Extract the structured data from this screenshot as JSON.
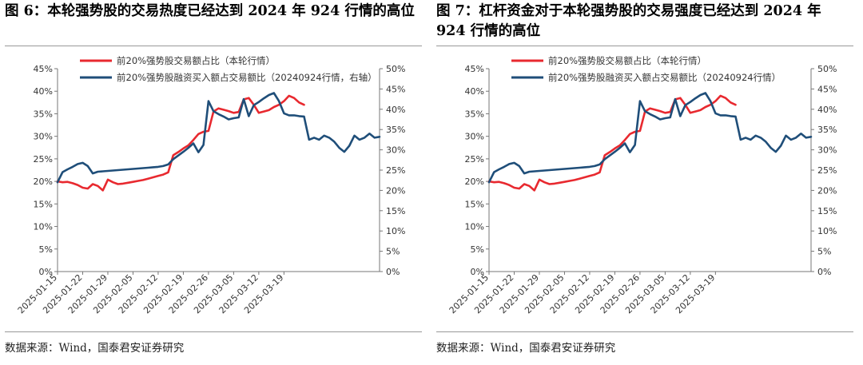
{
  "figures": [
    {
      "title": "图 6：本轮强势股的交易热度已经达到 2024 年 924 行情的高位",
      "source": "数据来源：Wind，国泰君安证券研究"
    },
    {
      "title": "图 7：杠杆资金对于本轮强势股的交易强度已经达到 2024 年 924 行情的高位",
      "source": "数据来源：Wind，国泰君安证券研究"
    }
  ],
  "chart_data": [
    {
      "type": "line",
      "title": "",
      "x_tick_labels": [
        "2025-01-15",
        "2025-01-22",
        "2025-01-29",
        "2025-02-05",
        "2025-02-12",
        "2025-02-19",
        "2025-02-26",
        "2025-03-05",
        "2025-03-12",
        "2025-03-19"
      ],
      "y_left": {
        "range": [
          0,
          45
        ],
        "ticks": [
          0,
          5,
          10,
          15,
          20,
          25,
          30,
          35,
          40,
          45
        ],
        "tick_labels": [
          "0%",
          "5%",
          "10%",
          "15%",
          "20%",
          "25%",
          "30%",
          "35%",
          "40%",
          "45%"
        ]
      },
      "y_right": {
        "range": [
          0,
          50
        ],
        "ticks": [
          0,
          5,
          10,
          15,
          20,
          25,
          30,
          35,
          40,
          45,
          50
        ],
        "tick_labels": [
          "0%",
          "5%",
          "10%",
          "15%",
          "20%",
          "25%",
          "30%",
          "35%",
          "40%",
          "45%",
          "50%"
        ]
      },
      "x_range": [
        0,
        64
      ],
      "series": [
        {
          "name": "前20%强势股交易额占比（本轮行情）",
          "color": "#e8292f",
          "axis": "left",
          "x": [
            0,
            1,
            2,
            3,
            4,
            5,
            6,
            7,
            8,
            9,
            10,
            11,
            12,
            13,
            14,
            15,
            16,
            17,
            18,
            19,
            20,
            21,
            22,
            23,
            24,
            25,
            26,
            27,
            28,
            29,
            30,
            31,
            32,
            33,
            34,
            35,
            36,
            37,
            38,
            39,
            40,
            41,
            42,
            43,
            44,
            45,
            46,
            47,
            48,
            49,
            50
          ],
          "values": [
            20.0,
            19.8,
            19.9,
            19.6,
            19.2,
            18.6,
            18.4,
            19.4,
            19.0,
            18.0,
            20.4,
            19.8,
            19.4,
            19.5,
            19.7,
            19.9,
            20.1,
            20.3,
            20.6,
            20.9,
            21.2,
            21.5,
            22.0,
            25.8,
            26.5,
            27.3,
            28.0,
            29.2,
            30.5,
            31.0,
            31.2,
            35.5,
            36.2,
            35.9,
            35.6,
            35.2,
            35.4,
            38.2,
            38.5,
            37.0,
            35.2,
            35.5,
            35.8,
            36.5,
            37.0,
            37.8,
            39.0,
            38.5,
            37.5,
            37.0,
            null
          ]
        },
        {
          "name": "前20%强势股融资买入额占交易额比（20240924行情，右轴）",
          "color": "#1f4e79",
          "axis": "right",
          "x": [
            0,
            1,
            2,
            3,
            4,
            5,
            6,
            7,
            8,
            9,
            10,
            11,
            12,
            13,
            14,
            15,
            16,
            17,
            18,
            19,
            20,
            21,
            22,
            23,
            24,
            25,
            26,
            27,
            28,
            29,
            30,
            31,
            32,
            33,
            34,
            35,
            36,
            37,
            38,
            39,
            40,
            41,
            42,
            43,
            44,
            45,
            46,
            47,
            48,
            49,
            50,
            51,
            52,
            53,
            54,
            55,
            56,
            57,
            58,
            59,
            60,
            61,
            62,
            63,
            64
          ],
          "values": [
            22.0,
            24.5,
            25.2,
            25.8,
            26.5,
            26.8,
            26.0,
            24.2,
            24.6,
            24.7,
            24.8,
            24.9,
            25.0,
            25.1,
            25.2,
            25.3,
            25.4,
            25.5,
            25.6,
            25.7,
            25.8,
            26.0,
            26.4,
            27.7,
            28.6,
            29.5,
            30.5,
            31.6,
            29.4,
            31.2,
            42.0,
            39.5,
            38.8,
            38.2,
            37.5,
            37.8,
            38.0,
            42.5,
            38.3,
            41.0,
            41.8,
            42.7,
            43.5,
            44.0,
            42.0,
            39.0,
            38.5,
            38.5,
            38.3,
            38.2,
            32.5,
            33.0,
            32.5,
            33.5,
            33.0,
            32.0,
            30.5,
            29.5,
            31.0,
            33.5,
            32.5,
            33.0,
            34.0,
            33.0,
            33.2
          ]
        }
      ],
      "legend_position": "top-left"
    },
    {
      "type": "line",
      "title": "",
      "x_tick_labels": [
        "2025-01-15",
        "2025-01-22",
        "2025-01-29",
        "2025-02-05",
        "2025-02-12",
        "2025-02-19",
        "2025-02-26",
        "2025-03-05",
        "2025-03-12",
        "2025-03-19"
      ],
      "y_left": {
        "range": [
          0,
          45
        ],
        "ticks": [
          0,
          5,
          10,
          15,
          20,
          25,
          30,
          35,
          40,
          45
        ],
        "tick_labels": [
          "0%",
          "5%",
          "10%",
          "15%",
          "20%",
          "25%",
          "30%",
          "35%",
          "40%",
          "45%"
        ]
      },
      "y_right": {
        "range": [
          0,
          50
        ],
        "ticks": [
          0,
          5,
          10,
          15,
          20,
          25,
          30,
          35,
          40,
          45,
          50
        ],
        "tick_labels": [
          "0%",
          "5%",
          "10%",
          "15%",
          "20%",
          "25%",
          "30%",
          "35%",
          "40%",
          "45%",
          "50%"
        ]
      },
      "x_range": [
        0,
        64
      ],
      "series": [
        {
          "name": "前20%强势股交易额占比（本轮行情）",
          "color": "#e8292f",
          "axis": "left",
          "x": [
            0,
            1,
            2,
            3,
            4,
            5,
            6,
            7,
            8,
            9,
            10,
            11,
            12,
            13,
            14,
            15,
            16,
            17,
            18,
            19,
            20,
            21,
            22,
            23,
            24,
            25,
            26,
            27,
            28,
            29,
            30,
            31,
            32,
            33,
            34,
            35,
            36,
            37,
            38,
            39,
            40,
            41,
            42,
            43,
            44,
            45,
            46,
            47,
            48,
            49,
            50
          ],
          "values": [
            20.0,
            19.8,
            19.9,
            19.6,
            19.2,
            18.6,
            18.4,
            19.4,
            19.0,
            18.0,
            20.4,
            19.8,
            19.4,
            19.5,
            19.7,
            19.9,
            20.1,
            20.3,
            20.6,
            20.9,
            21.2,
            21.5,
            22.0,
            25.8,
            26.5,
            27.3,
            28.0,
            29.2,
            30.5,
            31.0,
            31.2,
            35.5,
            36.2,
            35.9,
            35.6,
            35.2,
            35.4,
            38.2,
            38.5,
            37.0,
            35.2,
            35.5,
            35.8,
            36.5,
            37.0,
            37.8,
            39.0,
            38.5,
            37.5,
            37.0,
            null
          ]
        },
        {
          "name": "前20%强势股融资买入额占交易额比（20240924行情）",
          "color": "#1f4e79",
          "axis": "right",
          "x": [
            0,
            1,
            2,
            3,
            4,
            5,
            6,
            7,
            8,
            9,
            10,
            11,
            12,
            13,
            14,
            15,
            16,
            17,
            18,
            19,
            20,
            21,
            22,
            23,
            24,
            25,
            26,
            27,
            28,
            29,
            30,
            31,
            32,
            33,
            34,
            35,
            36,
            37,
            38,
            39,
            40,
            41,
            42,
            43,
            44,
            45,
            46,
            47,
            48,
            49,
            50,
            51,
            52,
            53,
            54,
            55,
            56,
            57,
            58,
            59,
            60,
            61,
            62,
            63,
            64
          ],
          "values": [
            22.0,
            24.5,
            25.2,
            25.8,
            26.5,
            26.8,
            26.0,
            24.2,
            24.6,
            24.7,
            24.8,
            24.9,
            25.0,
            25.1,
            25.2,
            25.3,
            25.4,
            25.5,
            25.6,
            25.7,
            25.8,
            26.0,
            26.4,
            27.7,
            28.6,
            29.5,
            30.5,
            31.6,
            29.4,
            31.2,
            42.0,
            39.5,
            38.8,
            38.2,
            37.5,
            37.8,
            38.0,
            42.5,
            38.3,
            41.0,
            41.8,
            42.7,
            43.5,
            44.0,
            42.0,
            39.0,
            38.5,
            38.5,
            38.3,
            38.2,
            32.5,
            33.0,
            32.5,
            33.5,
            33.0,
            32.0,
            30.5,
            29.5,
            31.0,
            33.5,
            32.5,
            33.0,
            34.0,
            33.0,
            33.2
          ]
        }
      ],
      "legend_position": "top-left"
    }
  ]
}
